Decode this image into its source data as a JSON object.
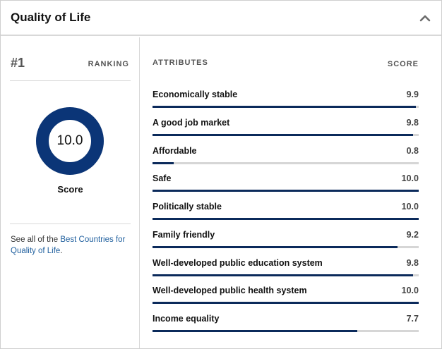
{
  "header": {
    "title": "Quality of Life",
    "collapse_icon": "chevron-up-icon"
  },
  "ranking": {
    "rank": "#1",
    "label": "RANKING",
    "score_value": "10.0",
    "score_fraction": 1.0,
    "score_label": "Score",
    "ring_color": "#0b3577"
  },
  "see_all": {
    "prefix": "See all of the ",
    "link_text": "Best Countries for Quality of Life",
    "suffix": "."
  },
  "attributes": {
    "header_label": "ATTRIBUTES",
    "score_header": "SCORE",
    "bar_color": "#0b2a5b",
    "track_color": "#d6d6d6",
    "rows": [
      {
        "label": "Economically stable",
        "score": "9.9",
        "fraction": 0.99
      },
      {
        "label": "A good job market",
        "score": "9.8",
        "fraction": 0.98
      },
      {
        "label": "Affordable",
        "score": "0.8",
        "fraction": 0.08
      },
      {
        "label": "Safe",
        "score": "10.0",
        "fraction": 1.0
      },
      {
        "label": "Politically stable",
        "score": "10.0",
        "fraction": 1.0
      },
      {
        "label": "Family friendly",
        "score": "9.2",
        "fraction": 0.92
      },
      {
        "label": "Well-developed public education system",
        "score": "9.8",
        "fraction": 0.98
      },
      {
        "label": "Well-developed public health system",
        "score": "10.0",
        "fraction": 1.0
      },
      {
        "label": "Income equality",
        "score": "7.7",
        "fraction": 0.77
      }
    ]
  }
}
